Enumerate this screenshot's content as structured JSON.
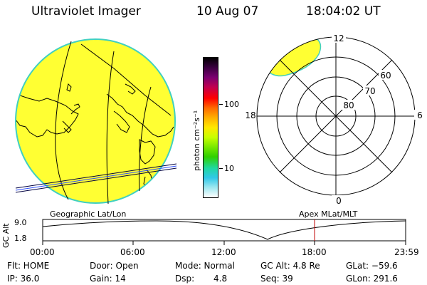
{
  "header": {
    "title": "Ultraviolet Imager",
    "date": "10 Aug 07",
    "time": "18:04:02 UT"
  },
  "colorbar": {
    "unit_label": "photon cm⁻²s⁻¹",
    "tick_100": "100",
    "tick_10": "10",
    "colors": [
      "#000000",
      "#3a0040",
      "#7a0070",
      "#c00050",
      "#ff0000",
      "#ff6a00",
      "#ffb000",
      "#ffe800",
      "#c8ff00",
      "#78e800",
      "#30d000",
      "#20d8a0",
      "#30c8e8",
      "#a0e8f0",
      "#ffffff"
    ]
  },
  "polar": {
    "mlt_top": "12",
    "mlt_bottom": "0",
    "mlt_left": "18",
    "mlt_right": "6",
    "lat_60": "60",
    "lat_70": "70",
    "lat_80": "80"
  },
  "altitude": {
    "geo_label": "Geographic Lat/Lon",
    "apex_label": "Apex MLat/MLT",
    "axis_label": "GC Alt",
    "y_max": "9.0",
    "y_min": "1.8",
    "times": [
      "00:00",
      "06:00",
      "12:00",
      "18:00",
      "23:59"
    ]
  },
  "status": {
    "flt": "Flt: HOME",
    "ip": "IP: 36.0",
    "door": "Door: Open",
    "gain": "Gain: 14",
    "mode": "Mode: Normal",
    "dsp_label": "Dsp:",
    "dsp_value": "4.8",
    "gc_alt": "GC Alt: 4.8 Re",
    "seq": "Seq: 39",
    "glat": "GLat: −59.6",
    "glon": "GLon: 291.6"
  }
}
